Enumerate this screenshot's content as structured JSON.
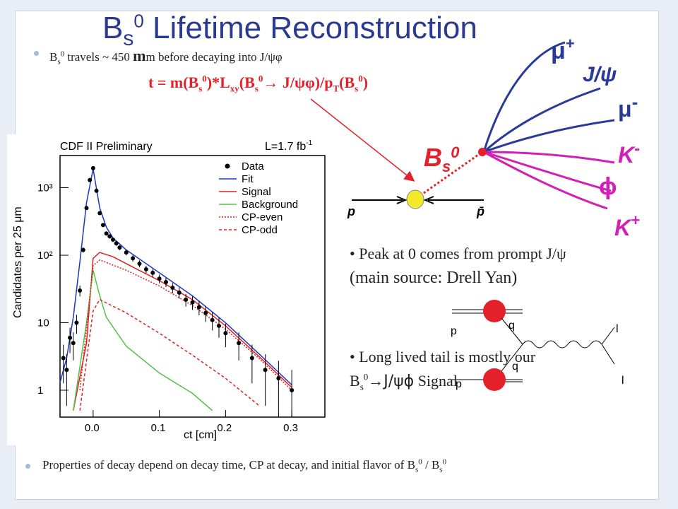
{
  "slide": {
    "title_main": "B",
    "title_sub": "s",
    "title_sup": "0",
    "title_rest": " Lifetime Reconstruction",
    "bullet1": {
      "pre": "B",
      "sub": "s",
      "sup": "0",
      "text": " travels ~ 450 ",
      "mu": "m",
      "text2": "m before decaying into  J/",
      "psi": "ψφ"
    },
    "bullet2": {
      "lead": "Peak at 0 comes from prompt J/",
      "psi": "ψ",
      "line2": "(main source: Drell Yan)"
    },
    "bullet3": {
      "lead": "Long lived tail is mostly our",
      "pre": "B",
      "sub": "s",
      "sup": "0",
      "arrow": "→",
      "decay": "J/ψϕ",
      "tail": "Signal"
    },
    "bullet4": {
      "text": "Properties of decay depend on decay time, CP at decay, and initial flavor of B",
      "sub": "s",
      "sup": "0",
      "sep": "  / B",
      "sub2": "s",
      "sup2": "0"
    }
  },
  "formula": {
    "text": "t = m(B",
    "sub": "s",
    "sup": "0",
    "text2": ")*L",
    "sub2": "xy",
    "text3": "(B",
    "sub3": "s",
    "sup3": "0",
    "arrow": "→",
    "text4": " J/ψφ)/p",
    "sub4": "T",
    "text5": "(B",
    "sub5": "s",
    "sup5": "0",
    "text6": ")"
  },
  "event_display": {
    "mu_plus": "μ+",
    "jpsi": "J/ψ",
    "mu_minus": "μ-",
    "k_minus": "K-",
    "phi": "ϕ",
    "k_plus": "K+",
    "bs": "Bs0",
    "p": "p",
    "pbar": "p̄",
    "colors": {
      "red": "#e4202a",
      "blue": "#2a3a99",
      "magenta": "#d21fb5",
      "yellow": "#f2ea2a"
    }
  },
  "feynman": {
    "q_top": "q",
    "q_bottom": "q",
    "l_top": "l",
    "l_bottom": "l",
    "p_top": "p",
    "p_bottom": "p"
  },
  "chart_data": {
    "type": "line",
    "title": "CDF II Preliminary",
    "lumi_label": "L=1.7 fb-1",
    "xlabel": "ct [cm]",
    "ylabel": "Candidates per 25 μm",
    "xlim": [
      -0.05,
      0.35
    ],
    "ylim_log": [
      0.4,
      3000
    ],
    "yscale": "log",
    "x_ticks": [
      "0.0",
      "0.1",
      "0.2",
      "0.3"
    ],
    "y_ticks": [
      "1",
      "10",
      "10²",
      "10³"
    ],
    "legend": [
      "Data",
      "Fit",
      "Signal",
      "Background",
      "CP-even",
      "CP-odd"
    ],
    "legend_position": "top-right",
    "series": [
      {
        "name": "Fit",
        "color": "#2035c4",
        "x": [
          -0.05,
          -0.04,
          -0.03,
          -0.02,
          -0.01,
          0.0,
          0.01,
          0.02,
          0.03,
          0.05,
          0.1,
          0.15,
          0.2,
          0.25,
          0.3
        ],
        "y": [
          1.3,
          3,
          12,
          80,
          600,
          1900,
          500,
          260,
          180,
          120,
          55,
          25,
          10,
          3.5,
          1.2
        ]
      },
      {
        "name": "Signal",
        "color": "#e02020",
        "x": [
          -0.03,
          -0.01,
          0.0,
          0.01,
          0.03,
          0.05,
          0.1,
          0.15,
          0.2,
          0.25,
          0.3
        ],
        "y": [
          0.5,
          5,
          90,
          110,
          95,
          75,
          42,
          22,
          9,
          3.2,
          1.1
        ]
      },
      {
        "name": "Background",
        "color": "#55c04a",
        "x": [
          -0.03,
          -0.01,
          0.0,
          0.01,
          0.02,
          0.05,
          0.1,
          0.15,
          0.18
        ],
        "y": [
          0.5,
          10,
          60,
          25,
          12,
          4.5,
          1.8,
          0.9,
          0.5
        ]
      },
      {
        "name": "CP-even",
        "color": "#e02020",
        "x": [
          -0.02,
          0.0,
          0.01,
          0.05,
          0.1,
          0.15,
          0.2,
          0.25,
          0.3
        ],
        "y": [
          1,
          70,
          85,
          60,
          35,
          18,
          8,
          3,
          1
        ]
      },
      {
        "name": "CP-odd",
        "color": "#e02020",
        "x": [
          -0.02,
          0.0,
          0.01,
          0.05,
          0.1,
          0.15,
          0.2,
          0.25
        ],
        "y": [
          0.5,
          15,
          22,
          14,
          7,
          3.3,
          1.5,
          0.6
        ]
      }
    ],
    "data_points": {
      "x": [
        -0.045,
        -0.04,
        -0.035,
        -0.03,
        -0.025,
        -0.02,
        -0.015,
        -0.01,
        -0.005,
        0.0,
        0.005,
        0.01,
        0.015,
        0.02,
        0.025,
        0.03,
        0.035,
        0.04,
        0.05,
        0.06,
        0.07,
        0.08,
        0.09,
        0.1,
        0.11,
        0.12,
        0.13,
        0.14,
        0.15,
        0.16,
        0.17,
        0.18,
        0.19,
        0.2,
        0.22,
        0.24,
        0.26,
        0.28,
        0.3
      ],
      "y": [
        3,
        2,
        6,
        5,
        10,
        30,
        120,
        500,
        1300,
        1950,
        900,
        420,
        280,
        210,
        190,
        170,
        150,
        130,
        110,
        90,
        75,
        62,
        55,
        45,
        40,
        33,
        28,
        22,
        20,
        17,
        14,
        11,
        9,
        7,
        5,
        3,
        2,
        1.5,
        1
      ]
    }
  }
}
